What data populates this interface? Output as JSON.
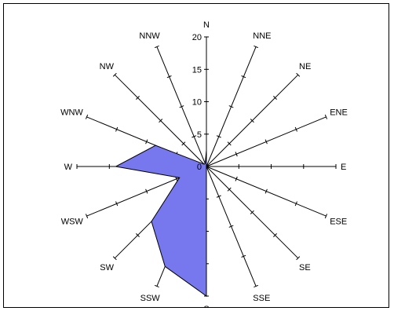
{
  "chart_data": {
    "type": "radar",
    "title": "",
    "directions": [
      "N",
      "NNE",
      "NE",
      "ENE",
      "E",
      "ESE",
      "SE",
      "SSE",
      "S",
      "SSW",
      "SW",
      "WSW",
      "W",
      "WNW",
      "NW",
      "NNW"
    ],
    "values": [
      2.5,
      0,
      0,
      0,
      0,
      0,
      0,
      0,
      20,
      16.7,
      12,
      4.5,
      14,
      8.5,
      0.5,
      0.5
    ],
    "rmax": 20,
    "rticks": [
      0,
      5,
      10,
      15,
      20
    ],
    "fill_color": "#7777ee",
    "stroke_color": "#000000",
    "axis_color": "#000000"
  }
}
